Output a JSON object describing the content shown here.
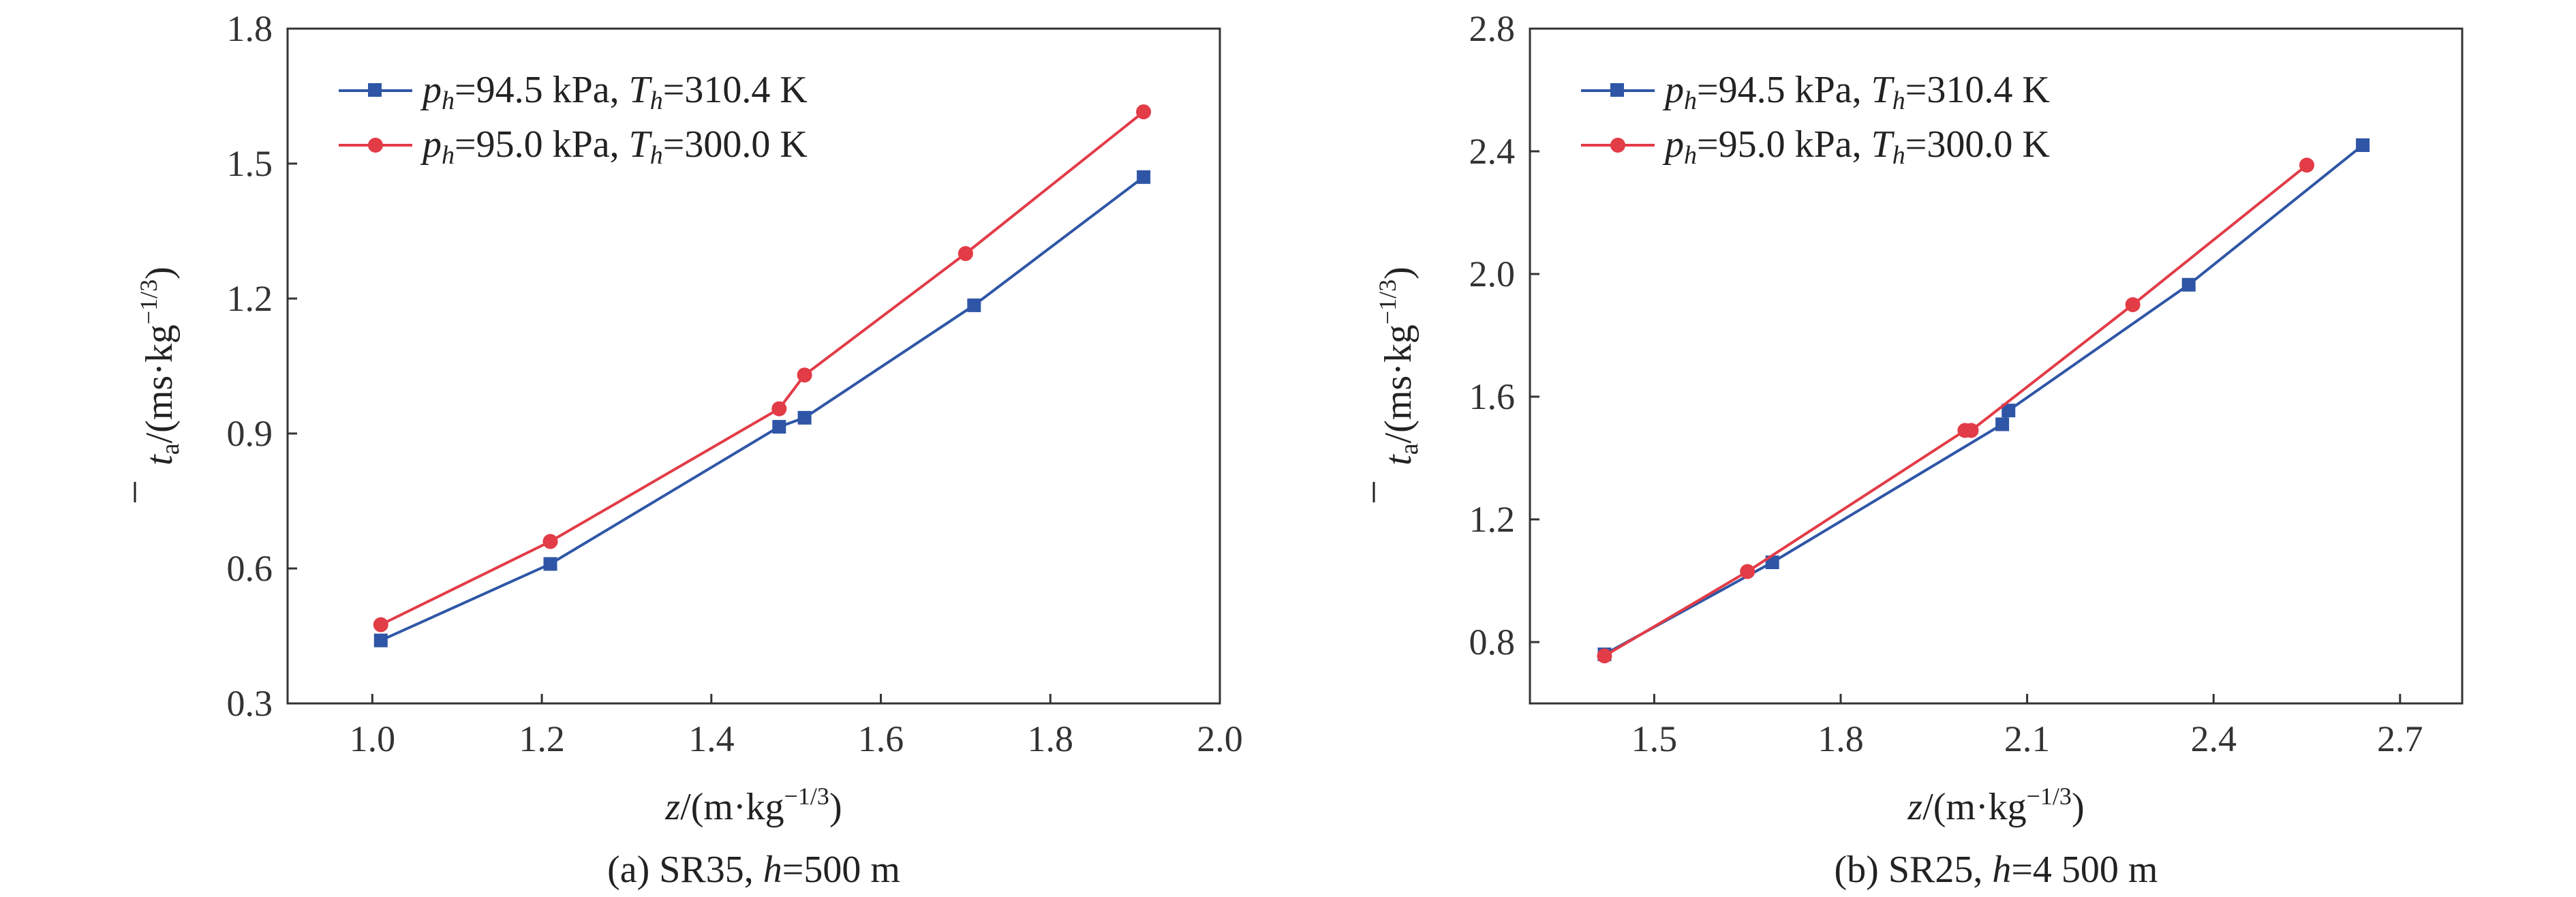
{
  "charts": [
    {
      "caption_prefix": "(a) SR35,",
      "caption_var": "h",
      "caption_value": "=500 m",
      "xlabel_var": "z",
      "xlabel_unit": "/(m·kg",
      "xlabel_exp": "−1/3",
      "xlabel_close": ")",
      "ylabel_var": "t",
      "ylabel_sub": "a",
      "ylabel_unit": "/(ms·kg",
      "ylabel_exp": "−1/3",
      "ylabel_close": ")",
      "xticks": [
        "1.0",
        "1.2",
        "1.4",
        "1.6",
        "1.8",
        "2.0"
      ],
      "yticks": [
        "0.3",
        "0.6",
        "0.9",
        "1.2",
        "1.5",
        "1.8"
      ]
    },
    {
      "caption_prefix": "(b) SR25,",
      "caption_var": "h",
      "caption_value": "=4 500 m",
      "xlabel_var": "z",
      "xlabel_unit": "/(m·kg",
      "xlabel_exp": "−1/3",
      "xlabel_close": ")",
      "ylabel_var": "t",
      "ylabel_sub": "a",
      "ylabel_unit": "/(ms·kg",
      "ylabel_exp": "−1/3",
      "ylabel_close": ")",
      "xticks": [
        "1.5",
        "1.8",
        "2.1",
        "2.4",
        "2.7"
      ],
      "yticks": [
        "0.8",
        "1.2",
        "1.6",
        "2.0",
        "2.4",
        "2.8"
      ]
    }
  ],
  "legend": [
    {
      "p_var": "p",
      "p_sub": "h",
      "p_val": "=94.5 kPa, ",
      "t_var": "T",
      "t_sub": "h",
      "t_val": "=310.4 K"
    },
    {
      "p_var": "p",
      "p_sub": "h",
      "p_val": "=95.0 kPa, ",
      "t_var": "T",
      "t_sub": "h",
      "t_val": "=300.0 K"
    }
  ],
  "colors": {
    "series1": "#2f56a6",
    "series2": "#e23c47",
    "axis": "#333333"
  },
  "chart_data": [
    {
      "type": "line",
      "xlim": [
        0.9,
        2.0
      ],
      "ylim": [
        0.3,
        1.8
      ],
      "legend_position": "top-left",
      "grid": false,
      "series": [
        {
          "marker": "square",
          "x": [
            1.01,
            1.21,
            1.48,
            1.51,
            1.71,
            1.91
          ],
          "y": [
            0.44,
            0.61,
            0.915,
            0.935,
            1.185,
            1.47
          ]
        },
        {
          "marker": "circle",
          "x": [
            1.01,
            1.21,
            1.48,
            1.51,
            1.7,
            1.91
          ],
          "y": [
            0.475,
            0.66,
            0.955,
            1.03,
            1.3,
            1.615
          ]
        }
      ]
    },
    {
      "type": "line",
      "xlim": [
        1.3,
        2.8
      ],
      "ylim": [
        0.6,
        2.8
      ],
      "legend_position": "top-left",
      "grid": false,
      "series": [
        {
          "marker": "square",
          "x": [
            1.42,
            1.69,
            2.06,
            2.07,
            2.36,
            2.64
          ],
          "y": [
            0.76,
            1.06,
            1.51,
            1.555,
            1.965,
            2.42
          ]
        },
        {
          "marker": "circle",
          "x": [
            1.42,
            1.65,
            2.0,
            2.01,
            2.27,
            2.55
          ],
          "y": [
            0.755,
            1.03,
            1.49,
            1.49,
            1.9,
            2.355
          ]
        }
      ]
    }
  ]
}
